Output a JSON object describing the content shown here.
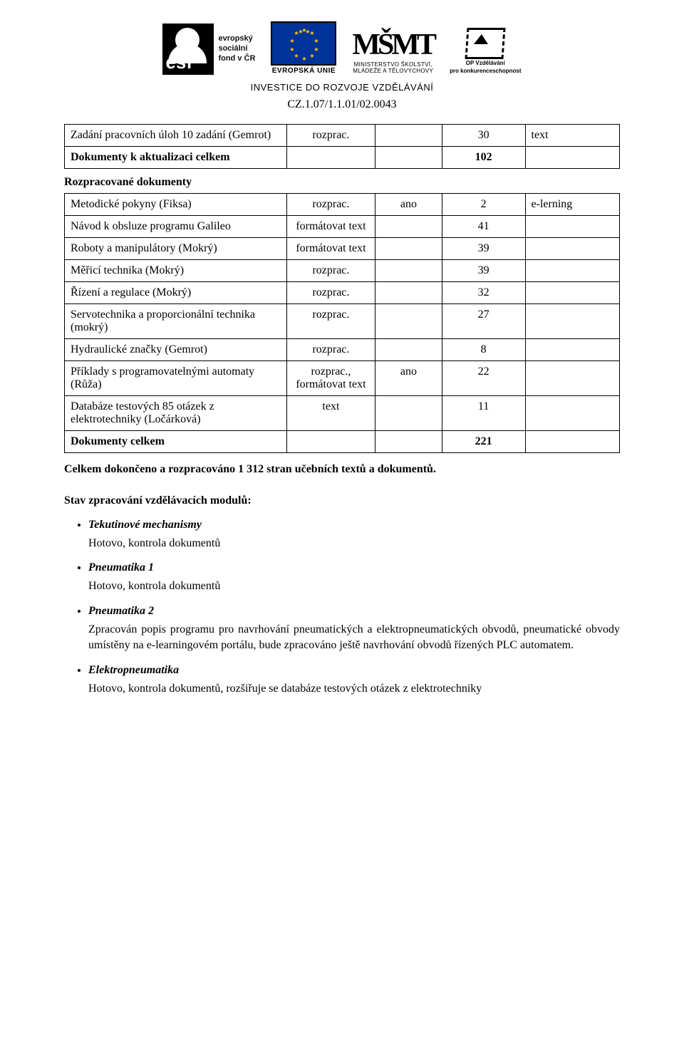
{
  "header": {
    "esf_lines": [
      "evropský",
      "sociální",
      "fond v ČR"
    ],
    "eu_label": "EVROPSKÁ UNIE",
    "msmt_glyph": "MŠMT",
    "msmt_line1": "MINISTERSTVO ŠKOLSTVÍ,",
    "msmt_line2": "MLÁDEŽE A TĚLOVÝCHOVY",
    "op_line1": "OP Vzdělávání",
    "op_line2": "pro konkurenceschopnost",
    "invest": "INVESTICE DO ROZVOJE VZDĚLÁVÁNÍ",
    "cz_code": "CZ.1.07/1.1.01/02.0043"
  },
  "table1": {
    "rows": [
      {
        "name": "Zadání pracovních úloh 10 zadání (Gemrot)",
        "status": "rozprac.",
        "flag": "",
        "num": "30",
        "note": "text"
      },
      {
        "name": "Dokumenty k aktualizaci celkem",
        "status": "",
        "flag": "",
        "num": "102",
        "note": "",
        "bold": true
      }
    ]
  },
  "section2_title": "Rozpracované dokumenty",
  "table2": {
    "rows": [
      {
        "name": "Metodické pokyny (Fiksa)",
        "status": "rozprac.",
        "flag": "ano",
        "num": "2",
        "note": "e-lerning"
      },
      {
        "name": "Návod k obsluze programu Galileo",
        "status": "formátovat text",
        "flag": "",
        "num": "41",
        "note": ""
      },
      {
        "name": "Roboty a manipulátory (Mokrý)",
        "status": "formátovat text",
        "flag": "",
        "num": "39",
        "note": ""
      },
      {
        "name": "Měřicí technika (Mokrý)",
        "status": "rozprac.",
        "flag": "",
        "num": "39",
        "note": ""
      },
      {
        "name": "Řízení a regulace (Mokrý)",
        "status": "rozprac.",
        "flag": "",
        "num": "32",
        "note": ""
      },
      {
        "name": "Servotechnika a proporcionální technika (mokrý)",
        "status": "rozprac.",
        "flag": "",
        "num": "27",
        "note": ""
      },
      {
        "name": "Hydraulické značky (Gemrot)",
        "status": "rozprac.",
        "flag": "",
        "num": "8",
        "note": ""
      },
      {
        "name": "Příklady s programovatelnými automaty (Růža)",
        "status": "rozprac., formátovat text",
        "flag": "ano",
        "num": "22",
        "note": ""
      },
      {
        "name": "Databáze testových 85 otázek z elektrotechniky (Ločárková)",
        "status": "text",
        "flag": "",
        "num": "11",
        "note": ""
      },
      {
        "name": "Dokumenty celkem",
        "status": "",
        "flag": "",
        "num": "221",
        "note": "",
        "bold": true
      }
    ]
  },
  "summary": "Celkem dokončeno a rozpracováno 1 312 stran učebních textů a dokumentů.",
  "modules_heading": "Stav zpracování vzdělávacích modulů:",
  "modules": [
    {
      "title": "Tekutinové mechanismy",
      "body": "Hotovo, kontrola dokumentů"
    },
    {
      "title": "Pneumatika 1",
      "body": "Hotovo, kontrola dokumentů"
    },
    {
      "title": "Pneumatika 2",
      "body": "Zpracován popis programu pro navrhování pneumatických a elektropneumatických obvodů, pneumatické obvody umístěny na e-learningovém portálu, bude zpracováno ještě navrhování obvodů řízených PLC automatem."
    },
    {
      "title": "Elektropneumatika",
      "body": "Hotovo, kontrola dokumentů, rozšiřuje se databáze testových otázek z elektrotechniky"
    }
  ]
}
